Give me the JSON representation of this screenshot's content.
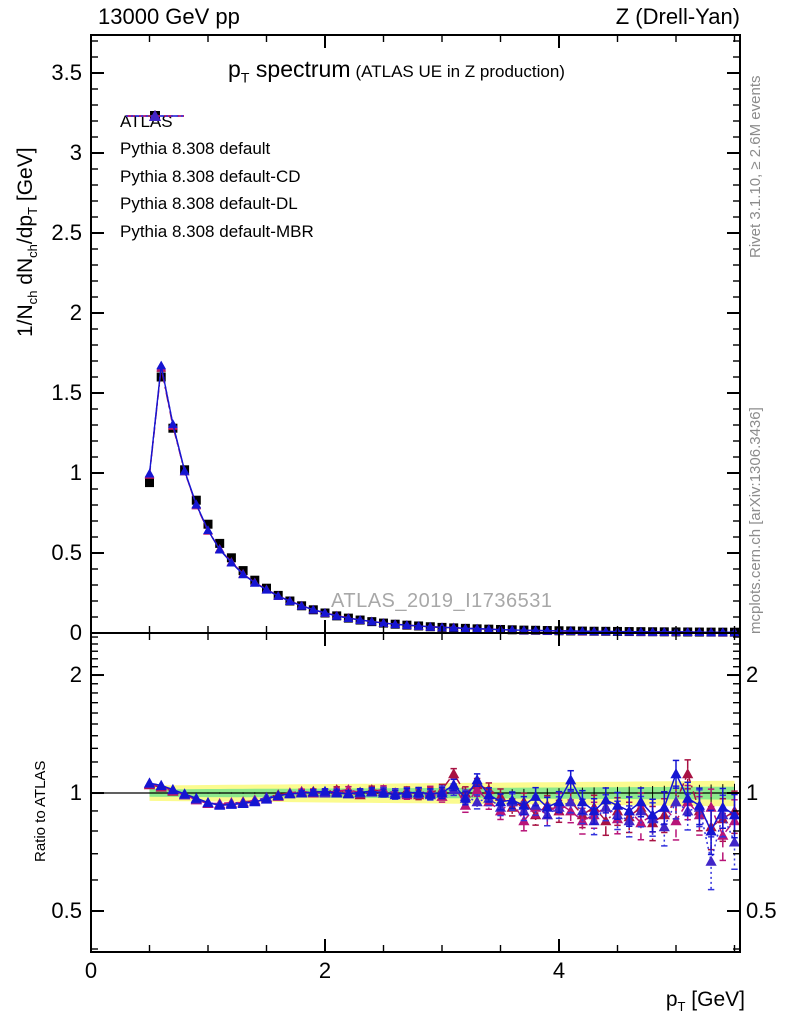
{
  "header": {
    "left": "13000 GeV pp",
    "right": "Z (Drell-Yan)"
  },
  "title": {
    "main_segments": [
      {
        "t": "p"
      },
      {
        "t": "T",
        "sub": true
      },
      {
        "t": " spectrum"
      }
    ],
    "sub": "(ATLAS UE in Z production)"
  },
  "watermark": "ATLAS_2019_I1736531",
  "side_captions": {
    "top": "Rivet 3.1.10, ≥ 2.6M events",
    "bottom": "mcplots.cern.ch [arXiv:1306.3436]"
  },
  "axes": {
    "x_label_segments": [
      {
        "t": "p"
      },
      {
        "t": "T",
        "sub": true
      },
      {
        "t": " [GeV]"
      }
    ],
    "y_label_segments": [
      {
        "t": "1/N"
      },
      {
        "t": "ch",
        "sub": true
      },
      {
        "t": " dN"
      },
      {
        "t": "ch",
        "sub": true
      },
      {
        "t": "/dp"
      },
      {
        "t": "T",
        "sub": true
      },
      {
        "t": " [GeV]"
      }
    ],
    "ratio_label": "Ratio to ATLAS",
    "x_major_ticks": [
      {
        "v": 0,
        "label": "0"
      },
      {
        "v": 2,
        "label": "2"
      },
      {
        "v": 4,
        "label": "4"
      }
    ],
    "y_major_ticks": [
      {
        "v": 0,
        "label": "0"
      },
      {
        "v": 0.5,
        "label": "0.5"
      },
      {
        "v": 1,
        "label": "1"
      },
      {
        "v": 1.5,
        "label": "1.5"
      },
      {
        "v": 2,
        "label": "2"
      },
      {
        "v": 2.5,
        "label": "2.5"
      },
      {
        "v": 3,
        "label": "3"
      },
      {
        "v": 3.5,
        "label": "3.5"
      }
    ],
    "ratio_major_ticks": [
      {
        "v": 0.5,
        "label": "0.5"
      },
      {
        "v": 1,
        "label": "1"
      },
      {
        "v": 2,
        "label": "2"
      }
    ]
  },
  "legend": {
    "items": [
      {
        "label": "ATLAS",
        "marker": "square",
        "color": "#000000",
        "line": "none"
      },
      {
        "label": "Pythia 8.308 default",
        "marker": "triangle",
        "color": "#1515d2",
        "line_color": "#1515d2",
        "line": "solid"
      },
      {
        "label": "Pythia 8.308 default-CD",
        "marker": "triangle",
        "color": "#a81243",
        "line_color": "#a81243",
        "line": "dashdot"
      },
      {
        "label": "Pythia 8.308 default-DL",
        "marker": "triangle",
        "color": "#b81478",
        "line_color": "#b81478",
        "line": "dashed"
      },
      {
        "label": "Pythia 8.308 default-MBR",
        "marker": "triangle",
        "color": "#4126c8",
        "line_color": "#3333dd",
        "line": "dotted"
      }
    ]
  },
  "colors": {
    "atlas": "#000000",
    "band_yellow": "#fbfb8f",
    "band_green": "#8ce98c",
    "ref_line": "#000000",
    "frame": "#000000",
    "gray_text": "#8c8c8c",
    "watermark": "#a8a8a8"
  },
  "chart_data": {
    "type": "scatter",
    "title": "pT spectrum (ATLAS UE in Z production)",
    "xlabel": "pT [GeV]",
    "ylabel": "1/Nch dNch/dpT [GeV]",
    "ratio_ylabel": "Ratio to ATLAS",
    "layout": {
      "x_range": [
        0,
        5.547
      ],
      "main_y_range": [
        0,
        3.7375
      ],
      "ratio_y_range_log": [
        0.393,
        2.56
      ],
      "ratio_scale": "log",
      "grid": false,
      "legend_position": "top-left"
    },
    "x": [
      0.5,
      0.6,
      0.7,
      0.8,
      0.9,
      1.0,
      1.1,
      1.2,
      1.3,
      1.4,
      1.5,
      1.6,
      1.7,
      1.8,
      1.9,
      2.0,
      2.1,
      2.2,
      2.3,
      2.4,
      2.5,
      2.6,
      2.7,
      2.8,
      2.9,
      3.0,
      3.1,
      3.2,
      3.3,
      3.4,
      3.5,
      3.6,
      3.7,
      3.8,
      3.9,
      4.0,
      4.1,
      4.2,
      4.3,
      4.4,
      4.5,
      4.6,
      4.7,
      4.8,
      4.9,
      5.0,
      5.1,
      5.2,
      5.3,
      5.4,
      5.5
    ],
    "atlas_y": [
      0.94,
      1.6,
      1.28,
      1.02,
      0.83,
      0.68,
      0.56,
      0.47,
      0.39,
      0.33,
      0.28,
      0.235,
      0.2,
      0.17,
      0.145,
      0.125,
      0.107,
      0.093,
      0.081,
      0.071,
      0.062,
      0.055,
      0.049,
      0.044,
      0.039,
      0.035,
      0.032,
      0.029,
      0.026,
      0.024,
      0.022,
      0.02,
      0.018,
      0.017,
      0.0155,
      0.014,
      0.013,
      0.012,
      0.011,
      0.0105,
      0.0097,
      0.009,
      0.0084,
      0.0078,
      0.0073,
      0.0068,
      0.0064,
      0.006,
      0.0056,
      0.0053,
      0.005
    ],
    "series": [
      {
        "name": "Pythia 8.308 default",
        "key": "default",
        "ratio": [
          1.06,
          1.045,
          1.02,
          0.995,
          0.97,
          0.945,
          0.93,
          0.935,
          0.94,
          0.95,
          0.965,
          0.985,
          0.995,
          1.0,
          1.005,
          1.01,
          1.0,
          0.995,
          1.005,
          1.01,
          1.0,
          0.99,
          1.0,
          1.005,
          0.995,
          1.0,
          1.05,
          0.97,
          1.08,
          0.99,
          0.95,
          0.96,
          0.93,
          0.98,
          0.92,
          0.95,
          1.08,
          0.95,
          0.9,
          0.96,
          0.93,
          0.9,
          0.95,
          0.88,
          0.92,
          1.12,
          0.97,
          0.93,
          0.8,
          0.92,
          0.88
        ]
      },
      {
        "name": "Pythia 8.308 default-CD",
        "key": "cd",
        "ratio": [
          1.05,
          1.035,
          1.01,
          0.99,
          0.965,
          0.94,
          0.935,
          0.94,
          0.95,
          0.955,
          0.975,
          0.99,
          1.0,
          1.005,
          1.01,
          1.005,
          1.02,
          1.0,
          0.99,
          1.02,
          1.01,
          1.0,
          1.01,
          0.99,
          1.005,
          1.02,
          1.12,
          1.0,
          1.05,
          1.02,
          0.98,
          0.92,
          0.95,
          0.88,
          0.93,
          0.9,
          0.95,
          0.88,
          0.92,
          0.85,
          0.9,
          0.87,
          0.92,
          0.84,
          0.88,
          0.95,
          1.12,
          0.9,
          0.82,
          0.86,
          0.9
        ]
      },
      {
        "name": "Pythia 8.308 default-DL",
        "key": "dl",
        "ratio": [
          1.055,
          1.04,
          1.015,
          0.99,
          0.96,
          0.94,
          0.94,
          0.945,
          0.945,
          0.96,
          0.97,
          0.98,
          1.0,
          1.01,
          1.0,
          1.005,
          1.01,
          1.02,
          1.0,
          1.01,
          1.02,
          1.0,
          0.99,
          1.0,
          1.01,
          0.98,
          1.05,
          0.93,
          1.02,
          0.95,
          0.9,
          0.95,
          0.85,
          0.92,
          0.88,
          0.94,
          0.9,
          0.85,
          0.88,
          0.92,
          0.86,
          0.9,
          0.84,
          0.88,
          0.92,
          0.85,
          0.95,
          0.88,
          0.92,
          0.78,
          0.85
        ]
      },
      {
        "name": "Pythia 8.308 default-MBR",
        "key": "mbr",
        "ratio": [
          1.06,
          1.045,
          1.02,
          0.99,
          0.965,
          0.945,
          0.935,
          0.94,
          0.945,
          0.955,
          0.975,
          0.985,
          0.995,
          1.0,
          1.005,
          1.0,
          1.005,
          0.995,
          1.0,
          1.005,
          1.01,
          1.0,
          1.005,
          1.0,
          0.99,
          1.01,
          1.02,
          0.98,
          0.95,
          0.97,
          0.92,
          0.95,
          0.9,
          0.93,
          0.88,
          0.92,
          0.95,
          0.9,
          0.85,
          0.92,
          0.88,
          0.85,
          0.9,
          0.86,
          0.82,
          0.95,
          0.9,
          0.92,
          0.67,
          0.88,
          0.75
        ]
      }
    ],
    "ratio_err": [
      0.006,
      0.006,
      0.006,
      0.006,
      0.007,
      0.007,
      0.008,
      0.008,
      0.009,
      0.009,
      0.01,
      0.011,
      0.012,
      0.013,
      0.014,
      0.015,
      0.017,
      0.018,
      0.02,
      0.021,
      0.023,
      0.025,
      0.026,
      0.028,
      0.03,
      0.032,
      0.034,
      0.037,
      0.039,
      0.041,
      0.044,
      0.046,
      0.049,
      0.052,
      0.055,
      0.058,
      0.06,
      0.064,
      0.067,
      0.07,
      0.073,
      0.077,
      0.08,
      0.084,
      0.087,
      0.091,
      0.095,
      0.099,
      0.103,
      0.107,
      0.111
    ],
    "bands": {
      "yellow_halfwidth": {
        "start": 0.045,
        "end": 0.075
      },
      "green_halfwidth": {
        "start": 0.022,
        "end": 0.038
      }
    }
  }
}
